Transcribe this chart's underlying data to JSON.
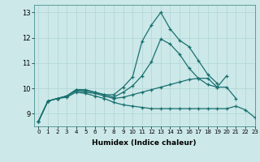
{
  "title": "",
  "xlabel": "Humidex (Indice chaleur)",
  "ylabel": "",
  "bg_color": "#cce8e8",
  "line_color": "#1a7070",
  "grid_color": "#aed4d4",
  "xlim": [
    -0.5,
    23
  ],
  "ylim": [
    8.5,
    13.3
  ],
  "yticks": [
    9,
    10,
    11,
    12,
    13
  ],
  "xticks": [
    0,
    1,
    2,
    3,
    4,
    5,
    6,
    7,
    8,
    9,
    10,
    11,
    12,
    13,
    14,
    15,
    16,
    17,
    18,
    19,
    20,
    21,
    22,
    23
  ],
  "series": [
    [
      8.7,
      9.5,
      9.6,
      9.7,
      9.95,
      9.95,
      9.85,
      9.75,
      9.75,
      10.05,
      10.45,
      11.85,
      12.5,
      13.0,
      12.35,
      11.9,
      11.65,
      11.1,
      10.55,
      10.2,
      null,
      null,
      null,
      null
    ],
    [
      8.7,
      9.5,
      9.6,
      9.7,
      9.95,
      9.9,
      9.85,
      9.75,
      9.65,
      9.85,
      10.1,
      10.5,
      11.05,
      11.95,
      11.75,
      11.35,
      10.8,
      10.4,
      10.15,
      10.05,
      10.5,
      null,
      null,
      null
    ],
    [
      8.7,
      9.5,
      9.6,
      9.7,
      9.9,
      9.85,
      9.8,
      9.7,
      9.6,
      9.65,
      9.75,
      9.85,
      9.95,
      10.05,
      10.15,
      10.25,
      10.35,
      10.4,
      10.4,
      10.05,
      10.05,
      9.6,
      null,
      null
    ],
    [
      8.7,
      9.5,
      9.6,
      9.65,
      9.85,
      9.8,
      9.7,
      9.6,
      9.45,
      9.35,
      9.3,
      9.25,
      9.2,
      9.2,
      9.2,
      9.2,
      9.2,
      9.2,
      9.2,
      9.2,
      9.2,
      9.3,
      9.15,
      8.85
    ]
  ]
}
